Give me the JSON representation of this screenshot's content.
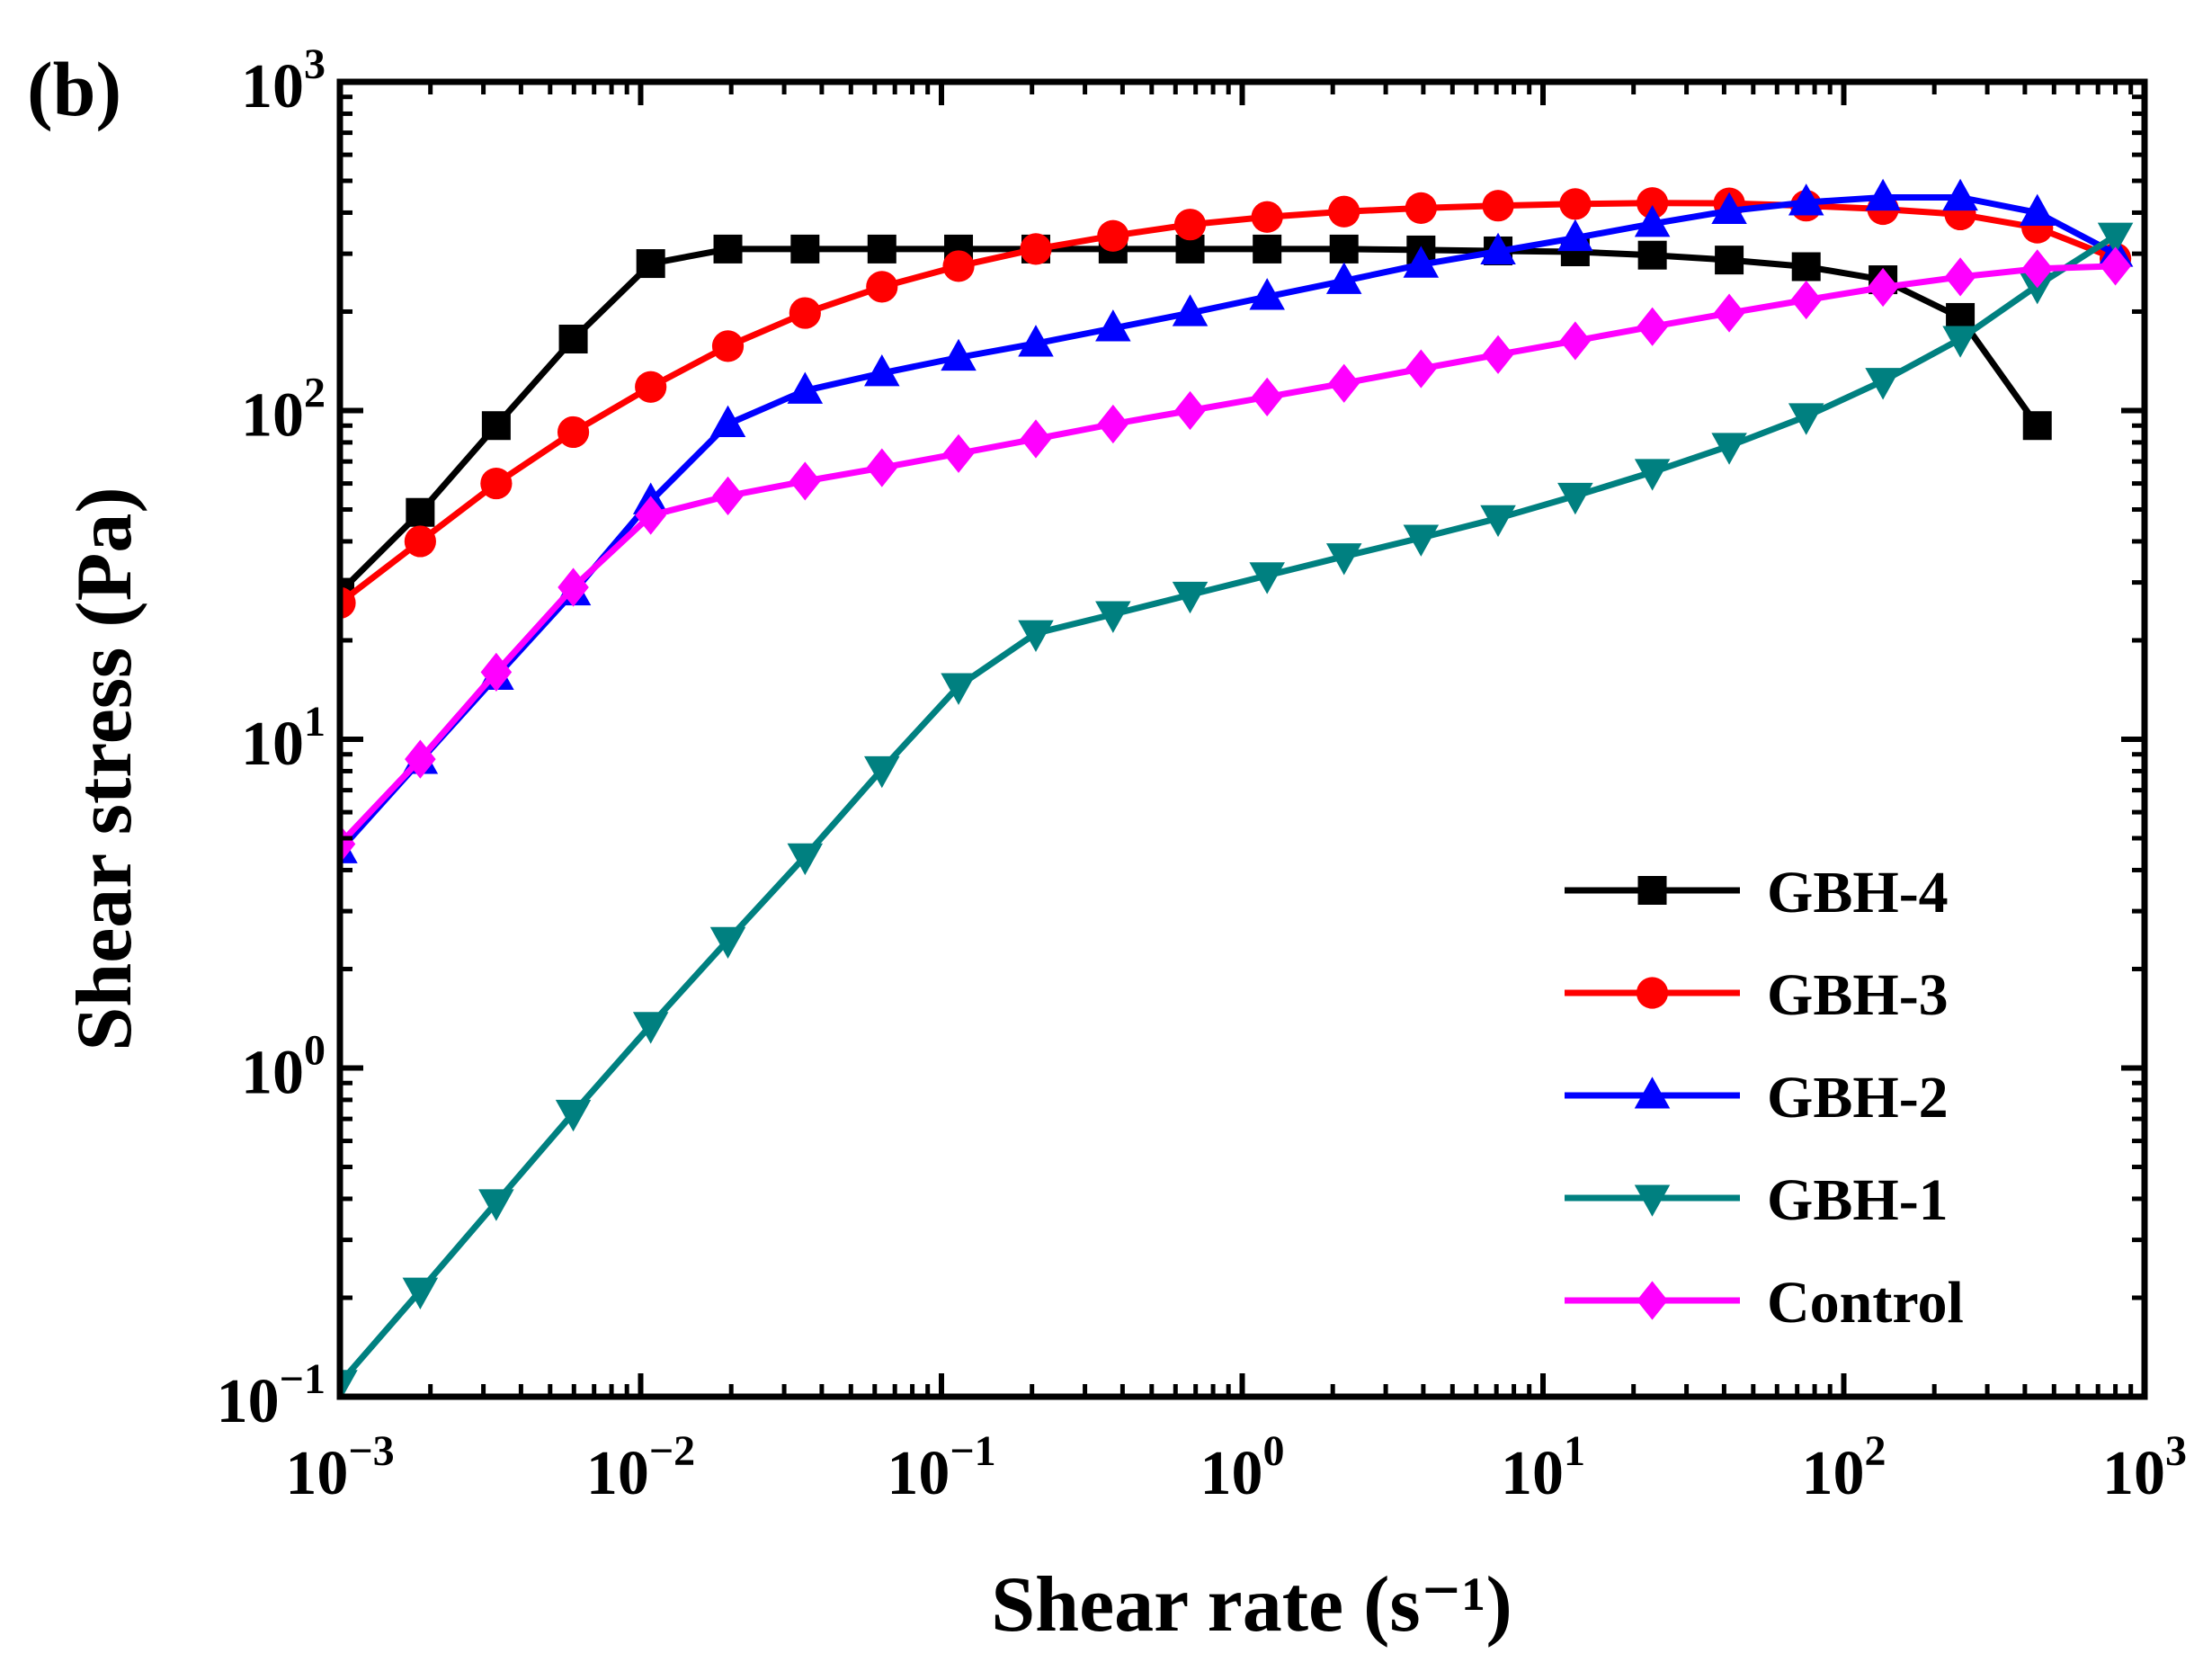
{
  "panel_label": "(b)",
  "chart_data": {
    "type": "line",
    "xlabel": "Shear rate (s⁻¹)",
    "ylabel": "Shear stress (Pa)",
    "xscale": "log",
    "yscale": "log",
    "xlim": [
      0.001,
      1000
    ],
    "ylim": [
      0.1,
      1000
    ],
    "grid": false,
    "legend_position": "bottom-right",
    "x_ticks": [
      {
        "value": 0.001,
        "base": "10",
        "exp": "−3"
      },
      {
        "value": 0.01,
        "base": "10",
        "exp": "−2"
      },
      {
        "value": 0.1,
        "base": "10",
        "exp": "−1"
      },
      {
        "value": 1,
        "base": "10",
        "exp": "0"
      },
      {
        "value": 10,
        "base": "10",
        "exp": "1"
      },
      {
        "value": 100,
        "base": "10",
        "exp": "2"
      },
      {
        "value": 1000,
        "base": "10",
        "exp": "3"
      }
    ],
    "y_ticks": [
      {
        "value": 0.1,
        "base": "10",
        "exp": "−1"
      },
      {
        "value": 1,
        "base": "10",
        "exp": "0"
      },
      {
        "value": 10,
        "base": "10",
        "exp": "1"
      },
      {
        "value": 100,
        "base": "10",
        "exp": "2"
      },
      {
        "value": 1000,
        "base": "10",
        "exp": "3"
      }
    ],
    "series": [
      {
        "name": "GBH-4",
        "color": "#000000",
        "marker": "square",
        "x": [
          0.001,
          0.00185,
          0.00331,
          0.00597,
          0.0108,
          0.0195,
          0.0352,
          0.0634,
          0.114,
          0.206,
          0.372,
          0.671,
          1.21,
          2.18,
          3.93,
          7.09,
          12.8,
          23.1,
          41.6,
          75.0,
          135,
          244,
          440
        ],
        "y": [
          28.0,
          49.0,
          90.0,
          165,
          280,
          310,
          310,
          310,
          310,
          310,
          310,
          310,
          310,
          310,
          308,
          306,
          304,
          297,
          287,
          274,
          250,
          192,
          90.0
        ]
      },
      {
        "name": "GBH-3",
        "color": "#ff0000",
        "marker": "circle",
        "x": [
          0.001,
          0.00185,
          0.00331,
          0.00597,
          0.0108,
          0.0195,
          0.0352,
          0.0634,
          0.114,
          0.206,
          0.372,
          0.671,
          1.21,
          2.18,
          3.93,
          7.09,
          12.8,
          23.1,
          41.6,
          75.0,
          135,
          244,
          440,
          800
        ],
        "y": [
          26.0,
          40.0,
          60.0,
          86.0,
          118,
          157,
          198,
          238,
          275,
          310,
          340,
          368,
          388,
          403,
          413,
          420,
          425,
          428,
          427,
          420,
          410,
          395,
          360,
          290
        ]
      },
      {
        "name": "GBH-2",
        "color": "#0000ff",
        "marker": "triangle-up",
        "x": [
          0.001,
          0.00185,
          0.00331,
          0.00597,
          0.0108,
          0.0195,
          0.0352,
          0.0634,
          0.114,
          0.206,
          0.372,
          0.671,
          1.21,
          2.18,
          3.93,
          7.09,
          12.8,
          23.1,
          41.6,
          75.0,
          135,
          244,
          440,
          800
        ],
        "y": [
          4.6,
          8.6,
          15.5,
          28.0,
          53.0,
          91.0,
          115,
          130,
          145,
          160,
          178,
          198,
          222,
          248,
          278,
          305,
          335,
          370,
          405,
          430,
          445,
          445,
          400,
          300
        ]
      },
      {
        "name": "GBH-1",
        "color": "#008080",
        "marker": "triangle-down",
        "x": [
          0.001,
          0.00185,
          0.00331,
          0.00597,
          0.0108,
          0.0195,
          0.0352,
          0.0634,
          0.114,
          0.206,
          0.372,
          0.671,
          1.21,
          2.18,
          3.93,
          7.09,
          12.8,
          23.1,
          41.6,
          75.0,
          135,
          244,
          440,
          800
        ],
        "y": [
          0.11,
          0.21,
          0.39,
          0.73,
          1.35,
          2.45,
          4.4,
          8.1,
          14.5,
          21.0,
          24.0,
          27.5,
          31.5,
          36.0,
          41.0,
          47.0,
          55.0,
          65.0,
          78.0,
          96.0,
          123,
          165,
          240,
          340
        ]
      },
      {
        "name": "Control",
        "color": "#ff00ff",
        "marker": "diamond",
        "x": [
          0.001,
          0.00185,
          0.00331,
          0.00597,
          0.0108,
          0.0195,
          0.0352,
          0.0634,
          0.114,
          0.206,
          0.372,
          0.671,
          1.21,
          2.18,
          3.93,
          7.09,
          12.8,
          23.1,
          41.6,
          75.0,
          135,
          244,
          440,
          800
        ],
        "y": [
          4.8,
          8.7,
          16.0,
          29.0,
          48.0,
          55.0,
          61.0,
          67.0,
          74.0,
          82.0,
          91.0,
          100,
          110,
          121,
          134,
          148,
          163,
          180,
          198,
          217,
          237,
          255,
          270,
          275
        ]
      }
    ]
  }
}
